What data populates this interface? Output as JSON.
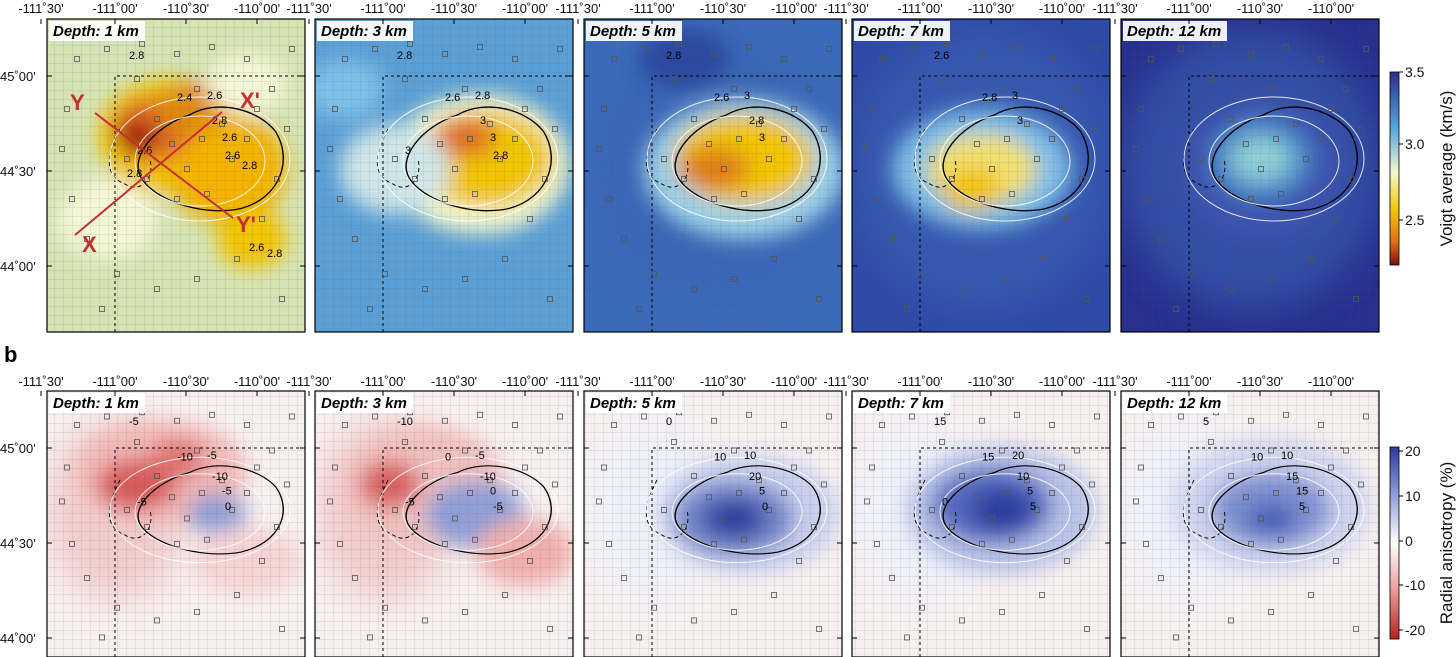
{
  "figure": {
    "panel_b_label": "b",
    "lon_ticks": [
      "-111˚30'",
      "-111˚00'",
      "-110˚30'",
      "-110˚00'"
    ],
    "lat_ticks": [
      "45˚00'",
      "44˚30'",
      "44˚00'"
    ],
    "depths": [
      "Depth: 1 km",
      "Depth: 3 km",
      "Depth: 5 km",
      "Depth: 7 km",
      "Depth: 12 km"
    ],
    "cross_sections": {
      "x": "X",
      "x_prime": "X'",
      "y": "Y",
      "y_prime": "Y'"
    }
  },
  "top_row": {
    "colorbar_title": "Voigt average (km/s)",
    "colorbar_ticks": [
      "3.5",
      "3.0",
      "2.5"
    ],
    "contour_labels": [
      [
        "2.8",
        "2.4",
        "2.6",
        "2.8",
        "2.6",
        "2.6",
        "2.6",
        "2.8",
        "2.8",
        "2.6",
        "2.8"
      ],
      [
        "2.8",
        "2.6",
        "2.8",
        "3",
        "3",
        "2.8",
        "3"
      ],
      [
        "2.8",
        "2.6",
        "3",
        "2.8",
        "3"
      ],
      [
        "2.6",
        "2.8",
        "3",
        "3"
      ],
      []
    ],
    "colors": {
      "low": "#a01a1a",
      "mid_low": "#f2c400",
      "mid": "#f3f7ce",
      "mid_high": "#5aa9de",
      "high": "#27308f"
    }
  },
  "bottom_row": {
    "colorbar_title": "Radial anisotropy (%)",
    "colorbar_ticks": [
      "20",
      "10",
      "0",
      "-10",
      "-20"
    ],
    "contour_labels": [
      [
        "-5",
        "-10",
        "-5",
        "-10",
        "-5",
        "0",
        "-5"
      ],
      [
        "-10",
        "0",
        "-5",
        "-10",
        "0",
        "-5",
        "-5"
      ],
      [
        "0",
        "10",
        "10",
        "20",
        "5",
        "0"
      ],
      [
        "15",
        "15",
        "20",
        "10",
        "5",
        "5",
        "0"
      ],
      [
        "5",
        "10",
        "10",
        "15",
        "15",
        "5"
      ]
    ],
    "colors": {
      "negative": "#c23a3a",
      "zero": "#ffffff",
      "positive": "#283a9c"
    }
  }
}
